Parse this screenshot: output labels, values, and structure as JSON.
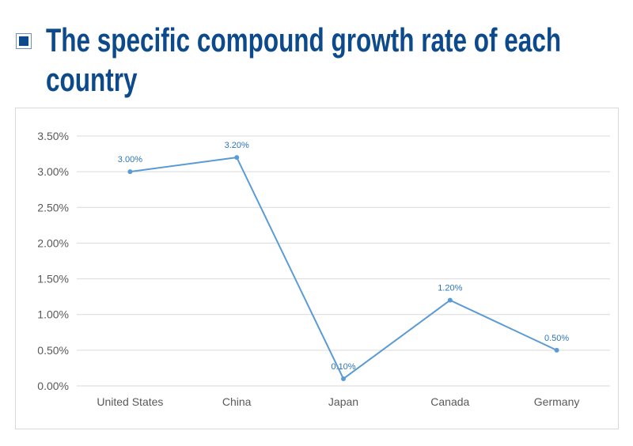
{
  "header": {
    "title": "The specific compound growth rate of each country",
    "bullet_icon": "square-bullet-icon"
  },
  "colors": {
    "title": "#0d4a8c",
    "series": "#5b9bd5",
    "label": "#2e75b6",
    "grid": "#d9d9d9"
  },
  "chart_data": {
    "type": "line",
    "categories": [
      "United States",
      "China",
      "Japan",
      "Canada",
      "Germany"
    ],
    "values": [
      3.0,
      3.2,
      0.1,
      1.2,
      0.5
    ],
    "data_labels": [
      "3.00%",
      "3.20%",
      "0.10%",
      "1.20%",
      "0.50%"
    ],
    "y_ticks": [
      "0.00%",
      "0.50%",
      "1.00%",
      "1.50%",
      "2.00%",
      "2.50%",
      "3.00%",
      "3.50%"
    ],
    "ylim": [
      0,
      3.5
    ],
    "grid": true,
    "legend": "none"
  }
}
